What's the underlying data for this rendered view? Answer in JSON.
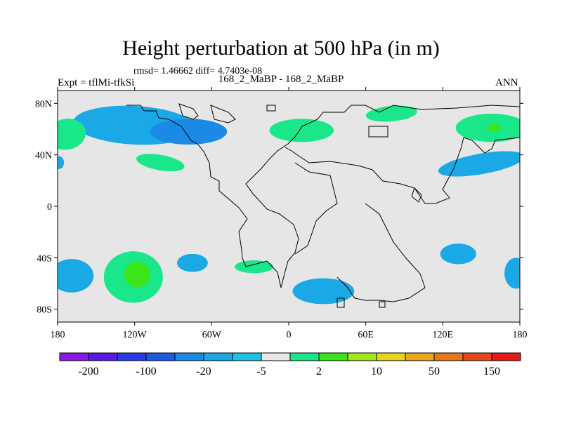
{
  "title": "Height perturbation at 500 hPa (in m)",
  "stats": "rmsd= 1.46662 diff= 4.7403e-08",
  "experiment": "Expt = tflMi-tfkSi",
  "case": "168_2_MaBP - 168_2_MaBP",
  "season": "ANN",
  "map": {
    "lon_range": [
      -180,
      180
    ],
    "lat_range": [
      -90,
      90
    ],
    "lon_ticks": [
      {
        "value": -180,
        "label": "180"
      },
      {
        "value": -120,
        "label": "120W"
      },
      {
        "value": -60,
        "label": "60W"
      },
      {
        "value": 0,
        "label": "0"
      },
      {
        "value": 60,
        "label": "60E"
      },
      {
        "value": 120,
        "label": "120E"
      },
      {
        "value": 180,
        "label": "180"
      }
    ],
    "lat_ticks": [
      {
        "value": 80,
        "label": "80N"
      },
      {
        "value": 40,
        "label": "40N"
      },
      {
        "value": 0,
        "label": "0"
      },
      {
        "value": -40,
        "label": "40S"
      },
      {
        "value": -80,
        "label": "80S"
      }
    ],
    "background_color": "#e6e6e6",
    "anomalies": [
      {
        "lon": -120,
        "lat": 63,
        "rx": 48,
        "ry": 15,
        "rot": 3,
        "level": 5
      },
      {
        "lon": -78,
        "lat": 58,
        "rx": 30,
        "ry": 10,
        "rot": 0,
        "level": 4
      },
      {
        "lon": -173,
        "lat": 56,
        "rx": 15,
        "ry": 12,
        "rot": -10,
        "level": 8
      },
      {
        "lon": 10,
        "lat": 59,
        "rx": 25,
        "ry": 9,
        "rot": 0,
        "level": 8
      },
      {
        "lon": 80,
        "lat": 72,
        "rx": 20,
        "ry": 6,
        "rot": -5,
        "level": 8
      },
      {
        "lon": 158,
        "lat": 61,
        "rx": 28,
        "ry": 11,
        "rot": 0,
        "level": 8
      },
      {
        "lon": 160,
        "lat": 61,
        "rx": 5,
        "ry": 3,
        "rot": 0,
        "level": 9
      },
      {
        "lon": 150,
        "lat": 33,
        "rx": 34,
        "ry": 8,
        "rot": -10,
        "level": 5
      },
      {
        "lon": -179,
        "lat": 34,
        "rx": 4,
        "ry": 5,
        "rot": 0,
        "level": 5
      },
      {
        "lon": -100,
        "lat": 34,
        "rx": 19,
        "ry": 6,
        "rot": 10,
        "level": 8
      },
      {
        "lon": -121,
        "lat": -55,
        "rx": 23,
        "ry": 20,
        "rot": 0,
        "level": 8
      },
      {
        "lon": -118,
        "lat": -53,
        "rx": 10,
        "ry": 10,
        "rot": 0,
        "level": 9
      },
      {
        "lon": -169,
        "lat": -54,
        "rx": 17,
        "ry": 13,
        "rot": 0,
        "level": 5
      },
      {
        "lon": -75,
        "lat": -44,
        "rx": 12,
        "ry": 7,
        "rot": 0,
        "level": 5
      },
      {
        "lon": -27,
        "lat": -47,
        "rx": 15,
        "ry": 5,
        "rot": 0,
        "level": 8
      },
      {
        "lon": 27,
        "lat": -66,
        "rx": 24,
        "ry": 10,
        "rot": 0,
        "level": 5
      },
      {
        "lon": 132,
        "lat": -37,
        "rx": 14,
        "ry": 8,
        "rot": 0,
        "level": 5
      },
      {
        "lon": 177,
        "lat": -52,
        "rx": 9,
        "ry": 12,
        "rot": 0,
        "level": 5
      }
    ]
  },
  "colorbar": {
    "colors": [
      "#8a1ae6",
      "#5a1ae6",
      "#2a3ae6",
      "#1a5ae6",
      "#1a8ae6",
      "#1aa8e6",
      "#1ac3e6",
      "#e6e6e6",
      "#1ae68a",
      "#3ae61a",
      "#a8e61a",
      "#e6d61a",
      "#e6a81a",
      "#e6781a",
      "#e6481a",
      "#e61a1a"
    ],
    "labels": [
      {
        "after_box": 1,
        "text": "-200"
      },
      {
        "after_box": 3,
        "text": "-100"
      },
      {
        "after_box": 5,
        "text": "-20"
      },
      {
        "after_box": 7,
        "text": "-5"
      },
      {
        "after_box": 9,
        "text": "2"
      },
      {
        "after_box": 11,
        "text": "10"
      },
      {
        "after_box": 13,
        "text": "50"
      },
      {
        "after_box": 15,
        "text": "150"
      }
    ]
  }
}
